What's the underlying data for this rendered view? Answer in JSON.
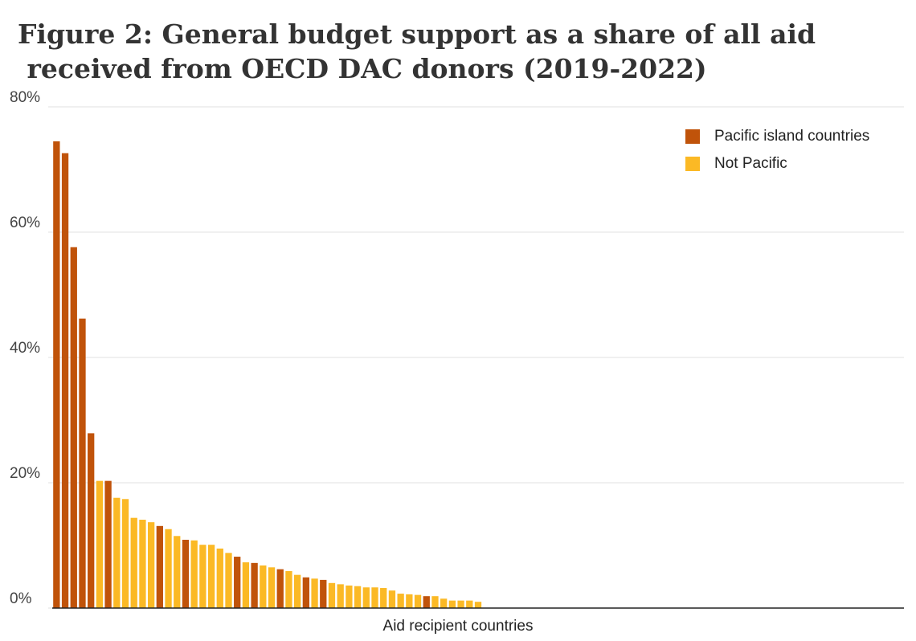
{
  "chart_data": {
    "type": "bar",
    "title": "Figure 2: General budget support as a share of all aid received from OECD DAC donors (2019-2022)",
    "x_label": "Aid recipient countries",
    "categories": [
      null,
      null,
      null,
      null,
      null,
      null,
      null,
      null,
      null,
      null,
      null,
      null,
      null,
      null,
      null,
      null,
      null,
      null,
      null,
      null,
      null,
      null,
      null,
      null,
      null,
      null,
      null,
      null,
      null,
      null,
      null,
      null,
      null,
      null,
      null,
      null,
      null,
      null,
      null,
      null,
      null,
      null,
      null,
      null,
      null,
      null,
      null,
      null,
      null,
      null,
      null,
      null,
      null,
      null,
      null,
      null,
      null,
      null,
      null,
      null,
      null,
      null,
      null,
      null,
      null,
      null,
      null,
      null,
      null,
      null,
      null,
      null,
      null,
      null,
      null,
      null,
      null,
      null,
      null,
      null,
      null,
      null,
      null,
      null,
      null,
      null,
      null,
      null,
      null,
      null,
      null,
      null,
      null,
      null,
      null,
      null,
      null,
      null,
      null
    ],
    "series": [
      {
        "name": "Pacific island countries",
        "color": "#c0530a",
        "values": [
          74.5,
          72.6,
          57.6,
          46.2,
          27.9,
          null,
          20.3,
          null,
          null,
          null,
          null,
          null,
          13.1,
          null,
          null,
          10.9,
          null,
          null,
          null,
          null,
          null,
          8.2,
          null,
          7.2,
          null,
          null,
          6.2,
          null,
          null,
          4.9,
          null,
          4.5,
          null,
          null,
          null,
          null,
          null,
          null,
          null,
          null,
          null,
          null,
          null,
          1.9,
          null,
          null,
          null,
          null,
          null,
          null,
          null,
          null,
          null,
          null,
          null,
          null,
          null,
          null,
          null,
          null,
          null,
          null,
          null,
          null,
          null,
          null,
          null,
          null,
          null,
          null,
          null,
          null,
          null,
          null,
          null,
          null,
          null,
          null,
          null,
          null,
          null,
          null,
          null,
          null,
          null,
          null,
          null,
          null,
          null,
          null,
          null,
          null,
          null,
          null,
          null,
          null,
          null,
          null,
          null
        ]
      },
      {
        "name": "Not Pacific",
        "color": "#fbb925",
        "values": [
          null,
          null,
          null,
          null,
          null,
          20.3,
          null,
          17.6,
          17.4,
          14.4,
          14.1,
          13.7,
          null,
          12.6,
          11.5,
          null,
          10.8,
          10.1,
          10.1,
          9.5,
          8.8,
          null,
          7.3,
          null,
          6.8,
          6.5,
          null,
          5.9,
          5.3,
          null,
          4.7,
          null,
          4.0,
          3.8,
          3.6,
          3.5,
          3.3,
          3.3,
          3.2,
          2.8,
          2.3,
          2.2,
          2.1,
          null,
          1.9,
          1.5,
          1.2,
          1.2,
          1.2,
          1.0,
          0,
          0,
          0,
          0,
          0,
          0,
          0,
          0,
          0,
          0,
          0,
          0,
          0,
          0,
          0,
          0,
          0,
          0,
          0,
          0,
          0,
          0,
          0,
          0,
          0,
          0,
          0,
          0,
          0,
          0,
          0,
          0,
          0,
          0,
          0,
          0,
          0,
          0,
          0,
          0,
          0,
          0,
          0,
          0,
          0,
          0,
          0,
          0,
          0
        ]
      }
    ],
    "ylim": [
      0,
      80
    ],
    "yticks": [
      {
        "value": 0,
        "label": "0%"
      },
      {
        "value": 20,
        "label": "20%"
      },
      {
        "value": 40,
        "label": "40%"
      },
      {
        "value": 60,
        "label": "60%"
      },
      {
        "value": 80,
        "label": "80%"
      }
    ],
    "grid": true,
    "legend": "top-right"
  }
}
